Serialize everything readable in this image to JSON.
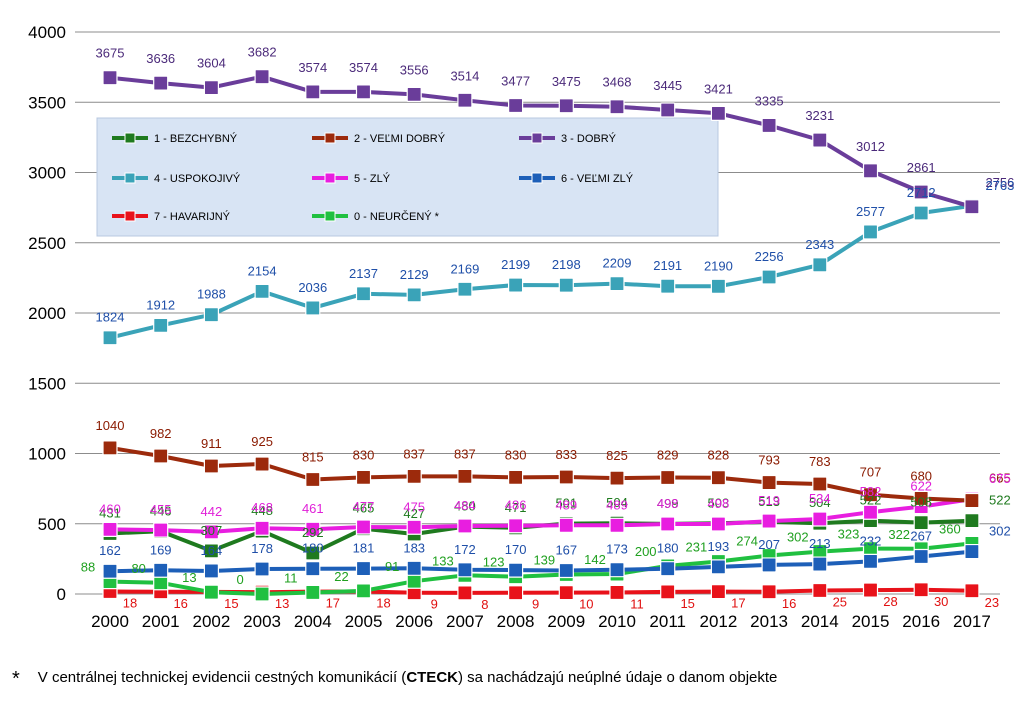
{
  "chart_data": {
    "type": "line",
    "x": [
      2000,
      2001,
      2002,
      2003,
      2004,
      2005,
      2006,
      2007,
      2008,
      2009,
      2010,
      2011,
      2012,
      2013,
      2014,
      2015,
      2016,
      2017
    ],
    "ylim": [
      0,
      4000
    ],
    "yticks": [
      0,
      500,
      1000,
      1500,
      2000,
      2500,
      3000,
      3500,
      4000
    ],
    "grid": true,
    "legend_position": "inside top-left",
    "legend_background": "#d8e4f4",
    "series": [
      {
        "name": "1 - BEZCHYBNÝ",
        "color": "#1f7a1f",
        "label_color": "#1e7a1e",
        "values": [
          431,
          446,
          307,
          448,
          292,
          465,
          427,
          480,
          471,
          501,
          504,
          499,
          503,
          513,
          504,
          522,
          508,
          522
        ]
      },
      {
        "name": "2 - VEĽMI DOBRÝ",
        "color": "#9c2a0c",
        "label_color": "#8a1a00",
        "values": [
          1040,
          982,
          911,
          925,
          815,
          830,
          837,
          837,
          830,
          833,
          825,
          829,
          828,
          793,
          783,
          707,
          680,
          665
        ]
      },
      {
        "name": "3 - DOBRÝ",
        "color": "#6a3d9a",
        "label_color": "#4b2a7a",
        "values": [
          3675,
          3636,
          3604,
          3682,
          3574,
          3574,
          3556,
          3514,
          3477,
          3475,
          3468,
          3445,
          3421,
          3335,
          3231,
          3012,
          2861,
          2756
        ]
      },
      {
        "name": "4 - USPOKOJIVÝ",
        "color": "#3aa3b8",
        "label_color": "#1f4fa8",
        "values": [
          1824,
          1912,
          1988,
          2154,
          2036,
          2137,
          2129,
          2169,
          2199,
          2198,
          2209,
          2191,
          2190,
          2256,
          2343,
          2577,
          2712,
          2763
        ]
      },
      {
        "name": "5 - ZLÝ",
        "color": "#e81ee0",
        "label_color": "#e020d8",
        "values": [
          460,
          455,
          442,
          468,
          461,
          477,
          475,
          484,
          486,
          489,
          489,
          498,
          498,
          519,
          534,
          582,
          622,
          675
        ]
      },
      {
        "name": "6 - VEĽMI ZLÝ",
        "color": "#1d5fb8",
        "label_color": "#1f4fa8",
        "values": [
          162,
          169,
          164,
          178,
          180,
          181,
          183,
          172,
          170,
          167,
          173,
          180,
          193,
          207,
          213,
          232,
          267,
          302
        ]
      },
      {
        "name": "7 - HAVARIJNÝ",
        "color": "#e8121a",
        "label_color": "#e01010",
        "values": [
          18,
          16,
          15,
          13,
          17,
          18,
          9,
          8,
          9,
          10,
          11,
          15,
          17,
          16,
          25,
          28,
          30,
          23
        ]
      },
      {
        "name": "0 - NEURČENÝ *",
        "color": "#20c040",
        "label_color": "#20a020",
        "values": [
          88,
          80,
          13,
          0,
          11,
          22,
          91,
          133,
          123,
          139,
          142,
          200,
          231,
          274,
          302,
          323,
          322,
          360
        ]
      }
    ]
  },
  "footnote": {
    "star": "*",
    "text_before": "V centrálnej technickej evidencii cestných komunikácií (",
    "bold": "CTECK",
    "text_after": ") sa nachádzajú neúplné údaje o danom objekte"
  }
}
